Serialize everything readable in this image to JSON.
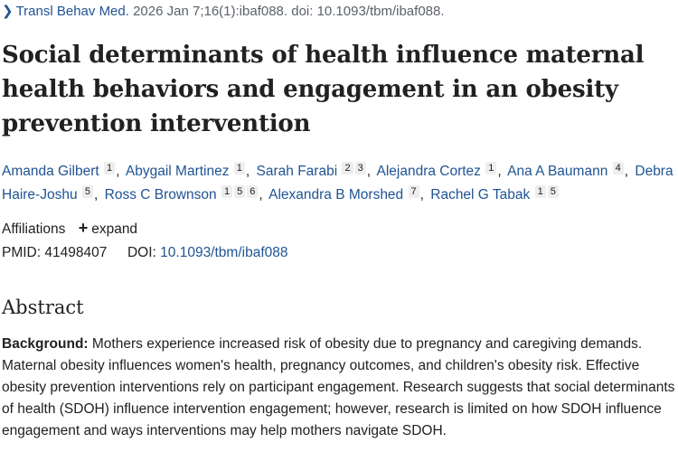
{
  "citation": {
    "chevron": "chevron-right-icon",
    "journal": "Transl Behav Med.",
    "details": "2026 Jan 7;16(1):ibaf088. doi: 10.1093/tbm/ibaf088."
  },
  "title": "Social determinants of health influence maternal health behaviors and engagement in an obesity prevention intervention",
  "authors": [
    {
      "name": "Amanda Gilbert",
      "affs": [
        "1"
      ]
    },
    {
      "name": "Abygail Martinez",
      "affs": [
        "1"
      ]
    },
    {
      "name": "Sarah Farabi",
      "affs": [
        "2",
        "3"
      ]
    },
    {
      "name": "Alejandra Cortez",
      "affs": [
        "1"
      ]
    },
    {
      "name": "Ana A Baumann",
      "affs": [
        "4"
      ]
    },
    {
      "name": "Debra Haire-Joshu",
      "affs": [
        "5"
      ]
    },
    {
      "name": "Ross C Brownson",
      "affs": [
        "1",
        "5",
        "6"
      ]
    },
    {
      "name": "Alexandra B Morshed",
      "affs": [
        "7"
      ]
    },
    {
      "name": "Rachel G Tabak",
      "affs": [
        "1",
        "5"
      ]
    }
  ],
  "affiliations": {
    "label": "Affiliations",
    "expand_icon": "plus-icon",
    "expand_label": "expand"
  },
  "ids": {
    "pmid_label": "PMID:",
    "pmid": "41498407",
    "doi_label": "DOI:",
    "doi": "10.1093/tbm/ibaf088"
  },
  "abstract": {
    "heading": "Abstract",
    "background_label": "Background:",
    "background_text": " Mothers experience increased risk of obesity due to pregnancy and caregiving demands. Maternal obesity influences women's health, pregnancy outcomes, and children's obesity risk. Effective obesity prevention interventions rely on participant engagement. Research suggests that social determinants of health (SDOH) influence intervention engagement; however, research is limited on how SDOH influence engagement and ways interventions may help mothers navigate SDOH."
  }
}
